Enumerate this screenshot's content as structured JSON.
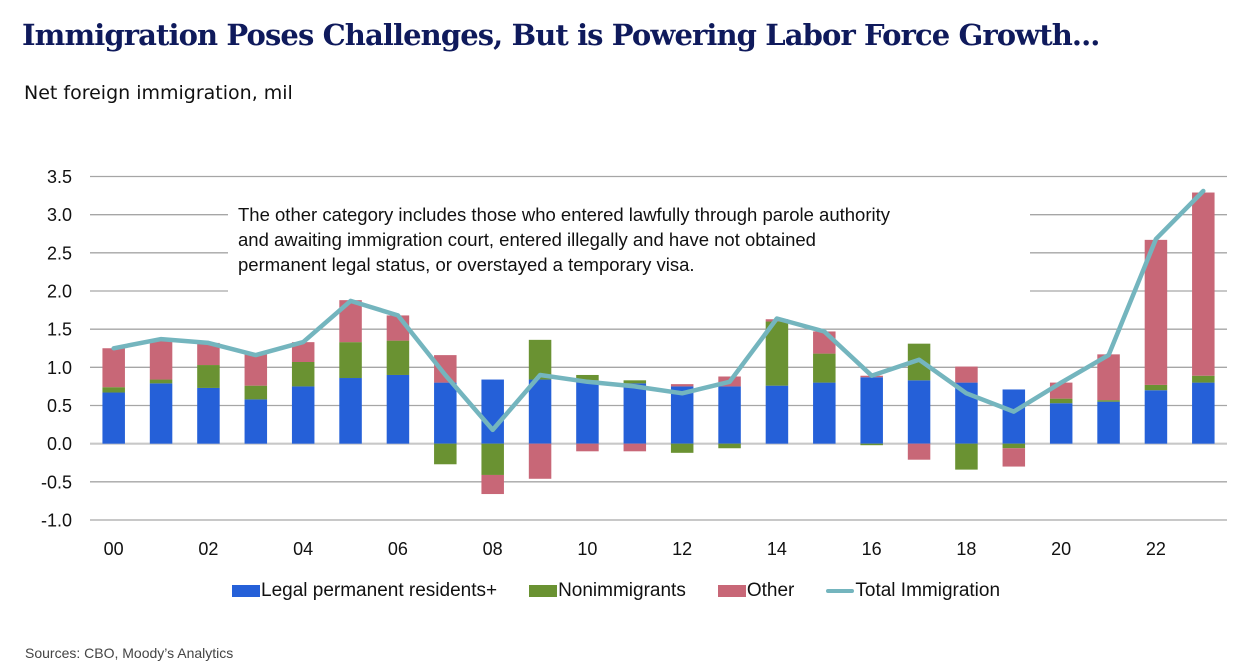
{
  "header": {
    "title": "Immigration Poses Challenges, But is Powering Labor Force Growth...",
    "subtitle": "Net foreign immigration, mil"
  },
  "annotation": {
    "lines": [
      "The other category includes those who entered lawfully through parole authority",
      "and awaiting immigration court, entered illegally and have not obtained",
      "permanent legal status, or overstayed a temporary visa."
    ]
  },
  "footer": {
    "source": "Sources: CBO, Moody’s Analytics"
  },
  "legend": [
    {
      "name": "Legal permanent residents+",
      "kind": "bar",
      "color": "#2560d8"
    },
    {
      "name": "Nonimmigrants",
      "kind": "bar",
      "color": "#6a9232"
    },
    {
      "name": "Other",
      "kind": "bar",
      "color": "#c86777"
    },
    {
      "name": "Total Immigration",
      "kind": "line",
      "color": "#74b5be"
    }
  ],
  "chart_data": {
    "type": "bar",
    "stacked": true,
    "title": "Immigration Poses Challenges, But is Powering Labor Force Growth...",
    "subtitle": "Net foreign immigration, mil",
    "xlabel": "",
    "ylabel": "Net foreign immigration, mil",
    "ylim": [
      -1.0,
      3.5
    ],
    "yticks": [
      3.5,
      3.0,
      2.5,
      2.0,
      1.5,
      1.0,
      0.5,
      0.0,
      -0.5,
      -1.0
    ],
    "ytick_labels": [
      "3.5",
      "3.0",
      "2.5",
      "2.0",
      "1.5",
      "1.0",
      "0.5",
      "0.0",
      "-0.5",
      "-1.0"
    ],
    "grid": true,
    "legend_position": "bottom",
    "categories": [
      "2000",
      "2001",
      "2002",
      "2003",
      "2004",
      "2005",
      "2006",
      "2007",
      "2008",
      "2009",
      "2010",
      "2011",
      "2012",
      "2013",
      "2014",
      "2015",
      "2016",
      "2017",
      "2018",
      "2019",
      "2020",
      "2021",
      "2022",
      "2023"
    ],
    "xtick_labels": [
      "00",
      "",
      "02",
      "",
      "04",
      "",
      "06",
      "",
      "08",
      "",
      "10",
      "",
      "12",
      "",
      "14",
      "",
      "16",
      "",
      "18",
      "",
      "20",
      "",
      "22",
      ""
    ],
    "series": [
      {
        "name": "Legal permanent residents+",
        "type": "bar",
        "color": "#2560d8",
        "values": [
          0.67,
          0.79,
          0.73,
          0.58,
          0.75,
          0.86,
          0.9,
          0.8,
          0.84,
          0.84,
          0.83,
          0.79,
          0.75,
          0.75,
          0.76,
          0.8,
          0.87,
          0.83,
          0.8,
          0.71,
          0.53,
          0.55,
          0.7,
          0.8
        ]
      },
      {
        "name": "Nonimmigrants",
        "type": "bar",
        "color": "#6a9232",
        "values": [
          0.07,
          0.05,
          0.3,
          0.18,
          0.32,
          0.47,
          0.45,
          -0.27,
          -0.41,
          0.52,
          0.07,
          0.04,
          -0.12,
          -0.06,
          0.84,
          0.38,
          -0.02,
          0.48,
          -0.34,
          -0.06,
          0.06,
          0.02,
          0.07,
          0.09
        ]
      },
      {
        "name": "Other",
        "type": "bar",
        "color": "#c86777",
        "values": [
          0.51,
          0.51,
          0.29,
          0.41,
          0.26,
          0.55,
          0.33,
          0.36,
          -0.25,
          -0.46,
          -0.1,
          -0.1,
          0.03,
          0.13,
          0.03,
          0.29,
          0.02,
          -0.21,
          0.21,
          -0.24,
          0.21,
          0.6,
          1.9,
          2.4
        ]
      },
      {
        "name": "Total Immigration",
        "type": "line",
        "color": "#74b5be",
        "values": [
          1.25,
          1.37,
          1.32,
          1.16,
          1.33,
          1.87,
          1.68,
          0.9,
          0.18,
          0.9,
          0.81,
          0.75,
          0.66,
          0.81,
          1.64,
          1.47,
          0.89,
          1.1,
          0.66,
          0.42,
          0.8,
          1.16,
          2.68,
          3.31
        ]
      }
    ],
    "annotations": [
      "The other category includes those who entered lawfully through parole authority and awaiting immigration court, entered illegally and have not obtained permanent legal status, or overstayed a temporary visa."
    ]
  }
}
